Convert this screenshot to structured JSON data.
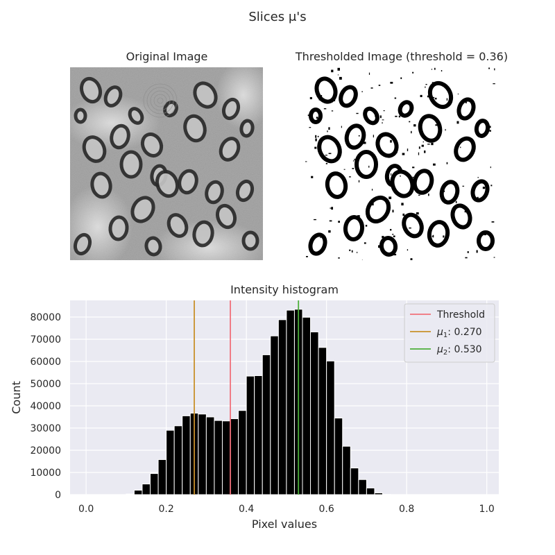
{
  "figure": {
    "suptitle": "Slices μ's"
  },
  "original_image": {
    "title": "Original Image"
  },
  "thresholded_image": {
    "title": "Thresholded Image (threshold = 0.36)"
  },
  "colors": {
    "background": "#eaeaf2",
    "grid": "#ffffff",
    "bar": "#000000",
    "threshold": "#f0707a",
    "mu1": "#c8902a",
    "mu2": "#4caf3a"
  },
  "chart_data": {
    "type": "bar",
    "title": "Intensity histogram",
    "xlabel": "Pixel values",
    "ylabel": "Count",
    "xlim": [
      -0.04,
      1.03
    ],
    "ylim": [
      0,
      87500
    ],
    "xticks": [
      "0.0",
      "0.2",
      "0.4",
      "0.6",
      "0.8",
      "1.0"
    ],
    "yticks": [
      "0",
      "10000",
      "20000",
      "30000",
      "40000",
      "50000",
      "60000",
      "70000",
      "80000"
    ],
    "grid": true,
    "bin_width": 0.02,
    "bin_starts": [
      0.1,
      0.12,
      0.14,
      0.16,
      0.18,
      0.2,
      0.22,
      0.24,
      0.26,
      0.28,
      0.3,
      0.32,
      0.34,
      0.36,
      0.38,
      0.4,
      0.42,
      0.44,
      0.46,
      0.48,
      0.5,
      0.52,
      0.54,
      0.56,
      0.58,
      0.6,
      0.62,
      0.64,
      0.66,
      0.68,
      0.7,
      0.72,
      0.74
    ],
    "counts": [
      300,
      2000,
      4800,
      9500,
      15800,
      29000,
      31000,
      35500,
      36700,
      36300,
      35000,
      33400,
      33200,
      34200,
      37900,
      53400,
      53600,
      63000,
      71500,
      78800,
      83100,
      83500,
      79900,
      73300,
      66300,
      60200,
      34500,
      21800,
      12000,
      6800,
      3000,
      800,
      100
    ],
    "vlines": [
      {
        "name": "Threshold",
        "x": 0.36
      },
      {
        "name": "μ1: 0.270",
        "x": 0.27
      },
      {
        "name": "μ2: 0.530",
        "x": 0.53
      }
    ],
    "legend": {
      "position": "top-right",
      "threshold_label": "Threshold",
      "mu1_symbol": "μ",
      "mu1_sub": "1",
      "mu1_value": ": 0.270",
      "mu2_symbol": "μ",
      "mu2_sub": "2",
      "mu2_value": ": 0.530"
    }
  }
}
